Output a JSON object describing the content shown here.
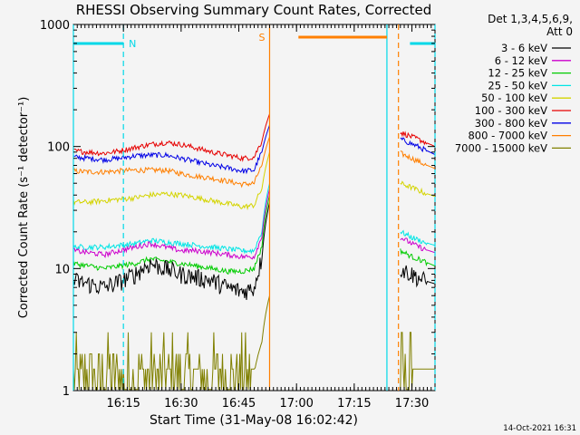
{
  "chart_data": {
    "type": "line",
    "title": "RHESSI Observing Summary Count Rates, Corrected",
    "xlabel": "Start Time (31-May-08 16:02:42)",
    "ylabel": "Corrected Count Rate (s⁻¹ detector⁻¹)",
    "y_scale": "log",
    "ylim": [
      1,
      1000
    ],
    "xlim_minutes": [
      0,
      94
    ],
    "x_ticks": [
      {
        "t": 13,
        "label": "16:15"
      },
      {
        "t": 28,
        "label": "16:30"
      },
      {
        "t": 43,
        "label": "16:45"
      },
      {
        "t": 58,
        "label": "17:00"
      },
      {
        "t": 73,
        "label": "17:15"
      },
      {
        "t": 88,
        "label": "17:30"
      }
    ],
    "y_ticks": [
      {
        "v": 1,
        "label": "1"
      },
      {
        "v": 10,
        "label": "10"
      },
      {
        "v": 100,
        "label": "100"
      },
      {
        "v": 1000,
        "label": "1000"
      }
    ],
    "legend_header": [
      "Det 1,3,4,5,6,9,",
      "Att 0"
    ],
    "legend_position": "right",
    "series": [
      {
        "name": "3 - 6 keV",
        "color": "#000000",
        "points": [
          [
            0,
            8
          ],
          [
            4,
            7.5
          ],
          [
            8,
            7
          ],
          [
            12,
            7.8
          ],
          [
            16,
            9
          ],
          [
            20,
            11
          ],
          [
            24,
            10
          ],
          [
            28,
            9
          ],
          [
            32,
            8.5
          ],
          [
            36,
            8
          ],
          [
            40,
            7
          ],
          [
            44,
            6.5
          ],
          [
            47,
            7
          ],
          [
            49,
            12
          ],
          [
            51,
            35
          ]
        ],
        "points_after": [
          [
            85,
            10
          ],
          [
            88,
            9
          ],
          [
            91,
            8
          ],
          [
            94,
            7.5
          ]
        ]
      },
      {
        "name": "6 - 12 keV",
        "color": "#cc00cc",
        "points": [
          [
            0,
            14
          ],
          [
            4,
            13.5
          ],
          [
            8,
            13
          ],
          [
            12,
            14
          ],
          [
            16,
            15
          ],
          [
            20,
            16
          ],
          [
            24,
            15
          ],
          [
            28,
            14
          ],
          [
            32,
            14
          ],
          [
            36,
            13.5
          ],
          [
            40,
            13
          ],
          [
            44,
            12.5
          ],
          [
            47,
            12.5
          ],
          [
            49,
            18
          ],
          [
            51,
            45
          ]
        ],
        "points_after": [
          [
            85,
            18
          ],
          [
            88,
            16
          ],
          [
            91,
            14.5
          ],
          [
            94,
            13.5
          ]
        ]
      },
      {
        "name": "12 - 25 keV",
        "color": "#00cc00",
        "points": [
          [
            0,
            11
          ],
          [
            4,
            10.5
          ],
          [
            8,
            10
          ],
          [
            12,
            10.5
          ],
          [
            16,
            11
          ],
          [
            20,
            12
          ],
          [
            24,
            11.5
          ],
          [
            28,
            11
          ],
          [
            32,
            10.5
          ],
          [
            36,
            10
          ],
          [
            40,
            9.5
          ],
          [
            44,
            9.5
          ],
          [
            47,
            10
          ],
          [
            49,
            15
          ],
          [
            51,
            40
          ]
        ],
        "points_after": [
          [
            85,
            14
          ],
          [
            88,
            12.5
          ],
          [
            91,
            11.5
          ],
          [
            94,
            10.5
          ]
        ]
      },
      {
        "name": "25 - 50 keV",
        "color": "#00e5e5",
        "points": [
          [
            0,
            15
          ],
          [
            4,
            15
          ],
          [
            8,
            15
          ],
          [
            12,
            15.5
          ],
          [
            16,
            16
          ],
          [
            20,
            17
          ],
          [
            24,
            16.5
          ],
          [
            28,
            16
          ],
          [
            32,
            15.5
          ],
          [
            36,
            15
          ],
          [
            40,
            14.5
          ],
          [
            44,
            14
          ],
          [
            47,
            14
          ],
          [
            49,
            20
          ],
          [
            51,
            50
          ]
        ],
        "points_after": [
          [
            85,
            20
          ],
          [
            88,
            18
          ],
          [
            91,
            16.5
          ],
          [
            94,
            15.5
          ]
        ]
      },
      {
        "name": "50 - 100 keV",
        "color": "#d4d400",
        "points": [
          [
            0,
            35
          ],
          [
            4,
            35
          ],
          [
            8,
            36
          ],
          [
            12,
            37
          ],
          [
            16,
            38
          ],
          [
            20,
            40
          ],
          [
            24,
            41
          ],
          [
            28,
            40
          ],
          [
            32,
            38
          ],
          [
            36,
            36
          ],
          [
            40,
            34
          ],
          [
            44,
            32
          ],
          [
            47,
            33
          ],
          [
            49,
            45
          ],
          [
            51,
            90
          ]
        ],
        "points_after": [
          [
            85,
            50
          ],
          [
            88,
            46
          ],
          [
            91,
            42
          ],
          [
            94,
            39
          ]
        ]
      },
      {
        "name": "100 - 300 keV",
        "color": "#e60000",
        "points": [
          [
            0,
            92
          ],
          [
            4,
            90
          ],
          [
            8,
            88
          ],
          [
            12,
            92
          ],
          [
            16,
            98
          ],
          [
            20,
            104
          ],
          [
            24,
            108
          ],
          [
            28,
            104
          ],
          [
            32,
            97
          ],
          [
            36,
            90
          ],
          [
            40,
            85
          ],
          [
            44,
            80
          ],
          [
            47,
            82
          ],
          [
            49,
            110
          ],
          [
            51,
            185
          ]
        ],
        "points_after": [
          [
            85,
            130
          ],
          [
            88,
            120
          ],
          [
            91,
            110
          ],
          [
            94,
            100
          ]
        ]
      },
      {
        "name": "300 - 800 keV",
        "color": "#0000e6",
        "points": [
          [
            0,
            82
          ],
          [
            4,
            80
          ],
          [
            8,
            78
          ],
          [
            12,
            80
          ],
          [
            16,
            84
          ],
          [
            20,
            85
          ],
          [
            24,
            85
          ],
          [
            28,
            80
          ],
          [
            32,
            75
          ],
          [
            36,
            70
          ],
          [
            40,
            67
          ],
          [
            44,
            63
          ],
          [
            47,
            64
          ],
          [
            49,
            90
          ],
          [
            51,
            150
          ]
        ],
        "points_after": [
          [
            85,
            115
          ],
          [
            88,
            105
          ],
          [
            91,
            95
          ],
          [
            94,
            86
          ]
        ]
      },
      {
        "name": "800 - 7000 keV",
        "color": "#ff7f00",
        "points": [
          [
            0,
            63
          ],
          [
            4,
            62
          ],
          [
            8,
            62
          ],
          [
            12,
            63
          ],
          [
            16,
            64
          ],
          [
            20,
            64
          ],
          [
            24,
            64
          ],
          [
            28,
            60
          ],
          [
            32,
            57
          ],
          [
            36,
            55
          ],
          [
            40,
            52
          ],
          [
            44,
            49
          ],
          [
            47,
            50
          ],
          [
            49,
            70
          ],
          [
            51,
            120
          ]
        ],
        "points_after": [
          [
            85,
            88
          ],
          [
            88,
            80
          ],
          [
            91,
            72
          ],
          [
            94,
            66
          ]
        ]
      },
      {
        "name": "7000 - 15000 keV",
        "color": "#808000",
        "points": [
          [
            0,
            1.5
          ],
          [
            4,
            1.5
          ],
          [
            8,
            1.5
          ],
          [
            12,
            1.6
          ],
          [
            16,
            2.2
          ],
          [
            20,
            2.5
          ],
          [
            24,
            2.4
          ],
          [
            28,
            2.0
          ],
          [
            32,
            1.8
          ],
          [
            36,
            1.6
          ],
          [
            40,
            1.5
          ],
          [
            44,
            1.5
          ],
          [
            47,
            1.4
          ],
          [
            49,
            2.5
          ],
          [
            51,
            6
          ]
        ],
        "points_after": [
          [
            85,
            1.5
          ],
          [
            88,
            1.5
          ],
          [
            91,
            1.5
          ],
          [
            94,
            1.5
          ]
        ]
      }
    ],
    "annotations": {
      "N_label": "N",
      "S_label": "S",
      "night_intervals": [
        [
          0,
          13
        ],
        [
          87.5,
          94
        ]
      ],
      "saa_interval": [
        58.5,
        81.5
      ],
      "data_gap": [
        51,
        84.5
      ],
      "cyan_vlines": [
        0,
        13,
        81.5,
        94
      ],
      "orange_vlines": [
        51,
        84.5
      ]
    },
    "grid": false
  },
  "footer": {
    "timestamp": "14-Oct-2021 16:31"
  }
}
